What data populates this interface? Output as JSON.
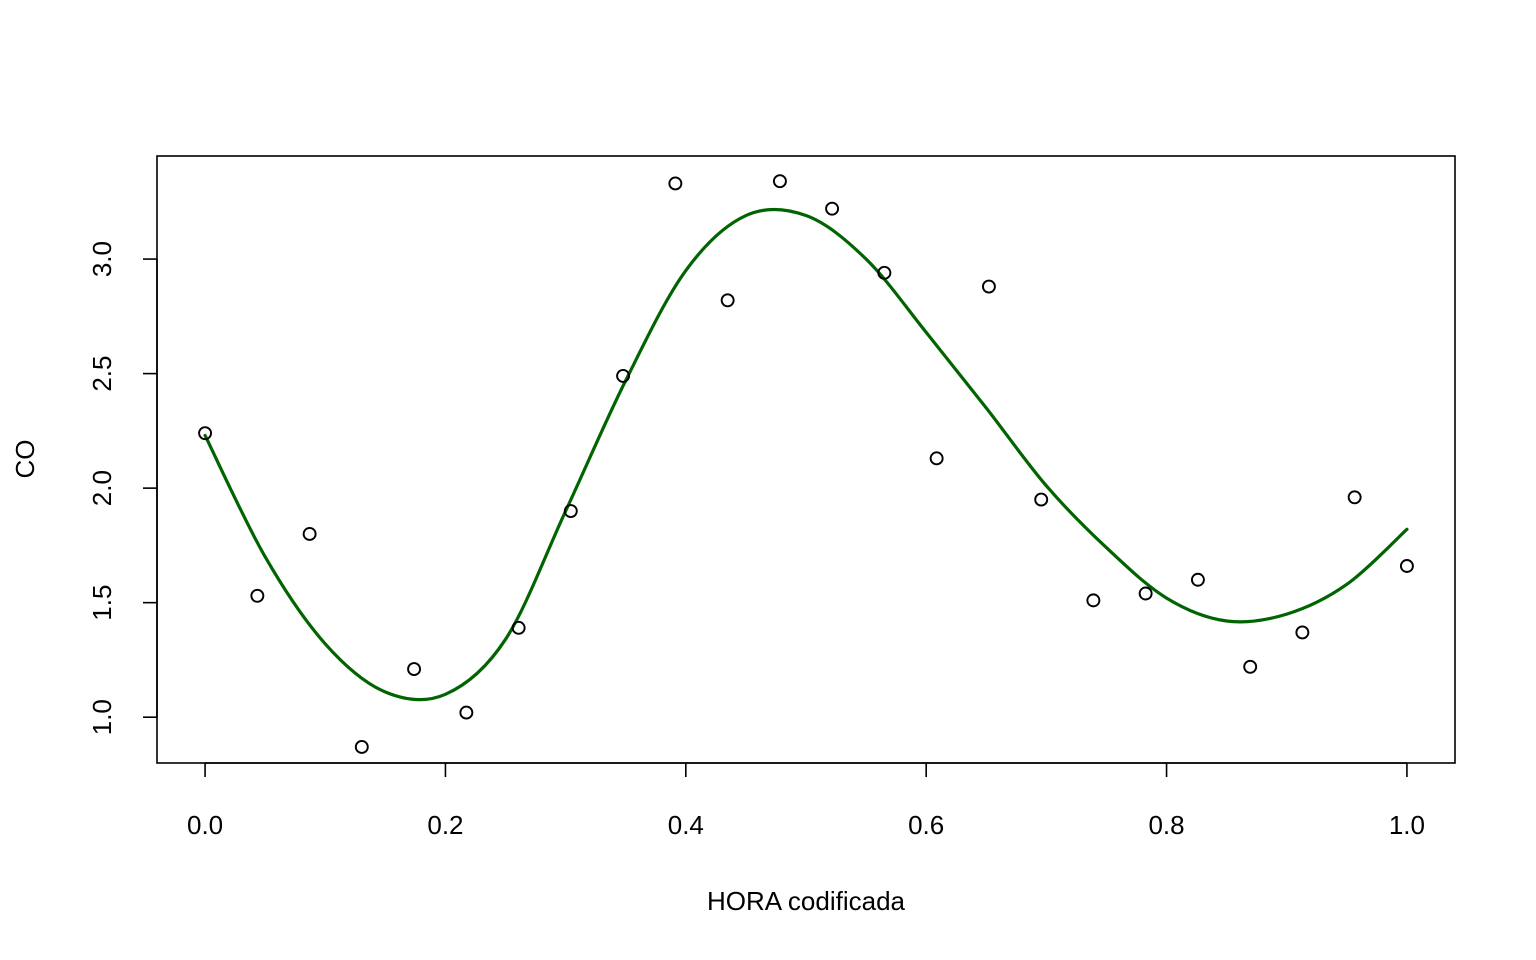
{
  "chart_data": {
    "type": "scatter",
    "title": "",
    "xlabel": "HORA codificada",
    "ylabel": "CO",
    "xlim": [
      -0.04,
      1.04
    ],
    "ylim": [
      0.8,
      3.45
    ],
    "x_ticks": [
      0.0,
      0.2,
      0.4,
      0.6,
      0.8,
      1.0
    ],
    "x_tick_labels": [
      "0.0",
      "0.2",
      "0.4",
      "0.6",
      "0.8",
      "1.0"
    ],
    "y_ticks": [
      1.0,
      1.5,
      2.0,
      2.5,
      3.0
    ],
    "y_tick_labels": [
      "1.0",
      "1.5",
      "2.0",
      "2.5",
      "3.0"
    ],
    "grid": false,
    "points": {
      "x": [
        0.0,
        0.0435,
        0.087,
        0.1304,
        0.1739,
        0.2174,
        0.2609,
        0.3043,
        0.3478,
        0.3913,
        0.4348,
        0.4783,
        0.5217,
        0.5652,
        0.6087,
        0.6522,
        0.6957,
        0.7391,
        0.7826,
        0.8261,
        0.8696,
        0.913,
        0.9565,
        1.0
      ],
      "y": [
        2.24,
        1.53,
        1.8,
        0.87,
        1.21,
        1.02,
        1.39,
        1.9,
        2.49,
        3.33,
        2.82,
        3.34,
        3.22,
        2.94,
        2.13,
        2.88,
        1.95,
        1.51,
        1.54,
        1.6,
        1.22,
        1.37,
        1.96,
        1.66
      ],
      "marker": "open-circle",
      "color": "#000000"
    },
    "fitted_line": {
      "x": [
        0.0,
        0.05,
        0.1,
        0.15,
        0.2,
        0.25,
        0.3,
        0.35,
        0.4,
        0.45,
        0.5,
        0.55,
        0.6,
        0.65,
        0.7,
        0.75,
        0.8,
        0.85,
        0.9,
        0.95,
        1.0
      ],
      "y": [
        2.23,
        1.7,
        1.32,
        1.11,
        1.1,
        1.34,
        1.9,
        2.47,
        2.95,
        3.19,
        3.19,
        3.0,
        2.68,
        2.35,
        2.01,
        1.74,
        1.52,
        1.42,
        1.45,
        1.58,
        1.82
      ],
      "color": "#006400"
    }
  }
}
